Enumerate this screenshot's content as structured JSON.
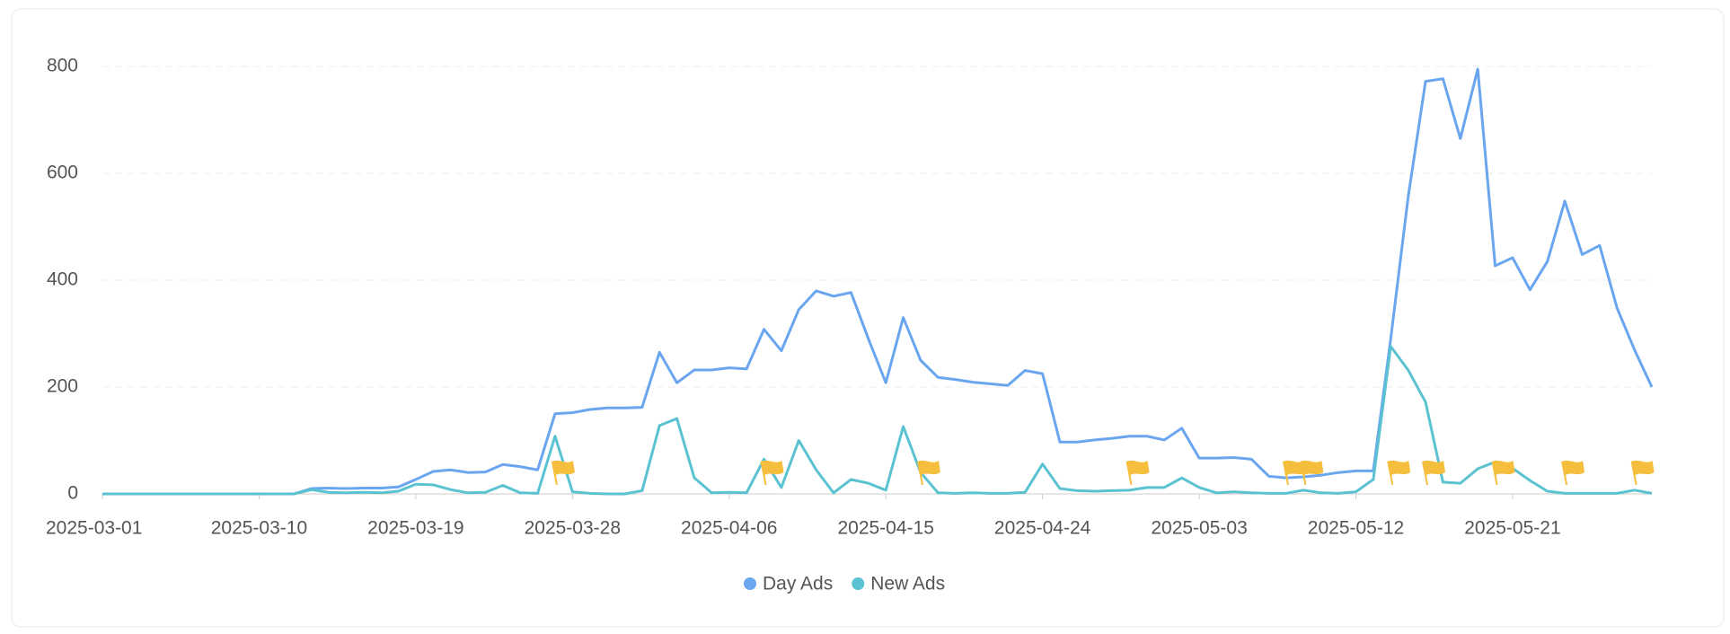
{
  "chart_data": {
    "type": "line",
    "x": [
      "2025-03-01",
      "2025-03-02",
      "2025-03-03",
      "2025-03-04",
      "2025-03-05",
      "2025-03-06",
      "2025-03-07",
      "2025-03-08",
      "2025-03-09",
      "2025-03-10",
      "2025-03-11",
      "2025-03-12",
      "2025-03-13",
      "2025-03-14",
      "2025-03-15",
      "2025-03-16",
      "2025-03-17",
      "2025-03-18",
      "2025-03-19",
      "2025-03-20",
      "2025-03-21",
      "2025-03-22",
      "2025-03-23",
      "2025-03-24",
      "2025-03-25",
      "2025-03-26",
      "2025-03-27",
      "2025-03-28",
      "2025-03-29",
      "2025-03-30",
      "2025-03-31",
      "2025-04-01",
      "2025-04-02",
      "2025-04-03",
      "2025-04-04",
      "2025-04-05",
      "2025-04-06",
      "2025-04-07",
      "2025-04-08",
      "2025-04-09",
      "2025-04-10",
      "2025-04-11",
      "2025-04-12",
      "2025-04-13",
      "2025-04-14",
      "2025-04-15",
      "2025-04-16",
      "2025-04-17",
      "2025-04-18",
      "2025-04-19",
      "2025-04-20",
      "2025-04-21",
      "2025-04-22",
      "2025-04-23",
      "2025-04-24",
      "2025-04-25",
      "2025-04-26",
      "2025-04-27",
      "2025-04-28",
      "2025-04-29",
      "2025-04-30",
      "2025-05-01",
      "2025-05-02",
      "2025-05-03",
      "2025-05-04",
      "2025-05-05",
      "2025-05-06",
      "2025-05-07",
      "2025-05-08",
      "2025-05-09",
      "2025-05-10",
      "2025-05-11",
      "2025-05-12",
      "2025-05-13",
      "2025-05-14",
      "2025-05-15",
      "2025-05-16",
      "2025-05-17",
      "2025-05-18",
      "2025-05-19",
      "2025-05-20",
      "2025-05-21",
      "2025-05-22",
      "2025-05-23",
      "2025-05-24",
      "2025-05-25",
      "2025-05-26",
      "2025-05-27",
      "2025-05-28",
      "2025-05-29"
    ],
    "series": [
      {
        "name": "Day Ads",
        "color": "#6aa6ef",
        "values": [
          0,
          0,
          0,
          0,
          0,
          0,
          0,
          0,
          0,
          0,
          0,
          0,
          10,
          11,
          10,
          11,
          11,
          13,
          27,
          42,
          45,
          40,
          41,
          55,
          51,
          45,
          150,
          152,
          158,
          161,
          161,
          162,
          265,
          208,
          232,
          232,
          236,
          234,
          308,
          268,
          345,
          380,
          370,
          377,
          290,
          208,
          330,
          250,
          218,
          214,
          209,
          206,
          203,
          231,
          225,
          97,
          97,
          101,
          104,
          108,
          108,
          101,
          123,
          67,
          67,
          68,
          65,
          33,
          30,
          32,
          35,
          40,
          43,
          43,
          290,
          555,
          772,
          777,
          665,
          795,
          427,
          442,
          382,
          435,
          548,
          448,
          465,
          348,
          270,
          200
        ]
      },
      {
        "name": "New Ads",
        "color": "#5ac2d0",
        "values": [
          0,
          0,
          0,
          0,
          0,
          0,
          0,
          0,
          0,
          0,
          0,
          0,
          8,
          3,
          2,
          3,
          2,
          5,
          18,
          17,
          8,
          2,
          3,
          16,
          2,
          1,
          108,
          4,
          1,
          0,
          0,
          6,
          128,
          141,
          30,
          2,
          3,
          2,
          65,
          12,
          100,
          45,
          2,
          27,
          20,
          7,
          126,
          40,
          2,
          1,
          2,
          1,
          1,
          3,
          56,
          10,
          6,
          5,
          6,
          7,
          12,
          12,
          30,
          12,
          2,
          4,
          2,
          1,
          1,
          7,
          2,
          1,
          4,
          27,
          276,
          232,
          172,
          22,
          20,
          47,
          60,
          48,
          25,
          5,
          1,
          1,
          1,
          1,
          7,
          1
        ]
      }
    ],
    "flags": [
      "2025-03-27",
      "2025-04-08",
      "2025-04-17",
      "2025-04-29",
      "2025-05-08",
      "2025-05-09",
      "2025-05-14",
      "2025-05-16",
      "2025-05-20",
      "2025-05-24",
      "2025-05-28"
    ],
    "flag_color": "#f5be3d",
    "xlim": [
      "2025-03-01",
      "2025-05-29"
    ],
    "xticks": [
      "2025-03-01",
      "2025-03-10",
      "2025-03-19",
      "2025-03-28",
      "2025-04-06",
      "2025-04-15",
      "2025-04-24",
      "2025-05-03",
      "2025-05-12",
      "2025-05-21"
    ],
    "ylim": [
      0,
      800
    ],
    "yticks": [
      0,
      200,
      400,
      600,
      800
    ],
    "grid": true,
    "legend": "bottom"
  }
}
